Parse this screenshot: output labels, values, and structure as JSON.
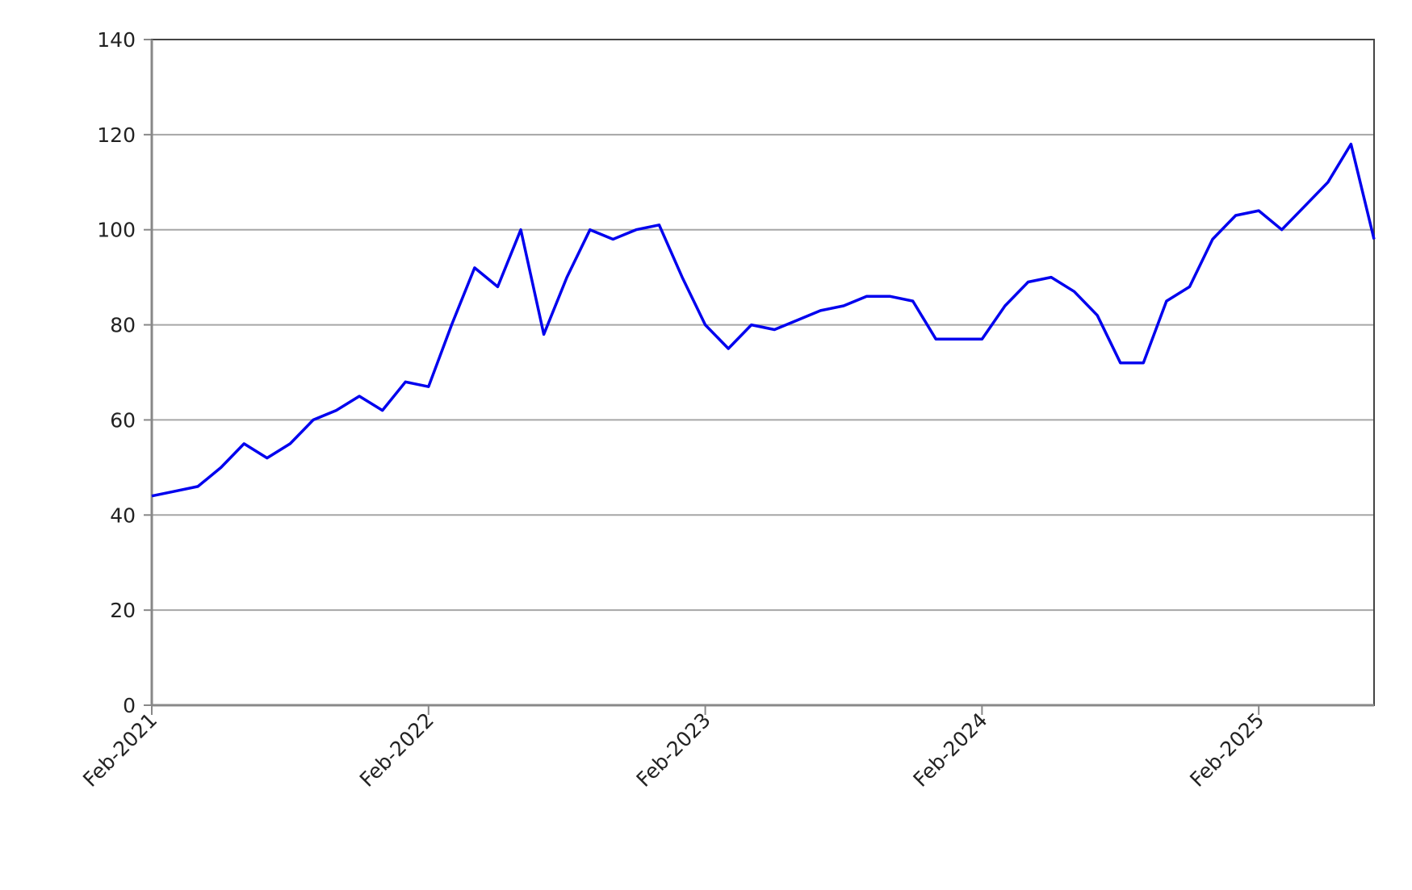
{
  "chart_data": {
    "type": "line",
    "x": [
      "Feb-2021",
      "Mar-2021",
      "Apr-2021",
      "May-2021",
      "Jun-2021",
      "Jul-2021",
      "Aug-2021",
      "Sep-2021",
      "Oct-2021",
      "Nov-2021",
      "Dec-2021",
      "Jan-2022",
      "Feb-2022",
      "Mar-2022",
      "Apr-2022",
      "May-2022",
      "Jun-2022",
      "Jul-2022",
      "Aug-2022",
      "Sep-2022",
      "Oct-2022",
      "Nov-2022",
      "Dec-2022",
      "Jan-2023",
      "Feb-2023",
      "Mar-2023",
      "Apr-2023",
      "May-2023",
      "Jun-2023",
      "Jul-2023",
      "Aug-2023",
      "Sep-2023",
      "Oct-2023",
      "Nov-2023",
      "Dec-2023",
      "Jan-2024",
      "Feb-2024",
      "Mar-2024",
      "Apr-2024",
      "May-2024",
      "Jun-2024",
      "Jul-2024",
      "Aug-2024",
      "Sep-2024",
      "Oct-2024",
      "Nov-2024",
      "Dec-2024",
      "Jan-2025",
      "Feb-2025",
      "Mar-2025",
      "Apr-2025",
      "May-2025",
      "Jun-2025",
      "Jul-2025"
    ],
    "values": [
      44,
      45,
      46,
      50,
      55,
      52,
      55,
      60,
      62,
      65,
      62,
      68,
      67,
      80,
      92,
      88,
      100,
      78,
      90,
      100,
      98,
      100,
      101,
      90,
      80,
      75,
      80,
      79,
      81,
      83,
      84,
      86,
      86,
      85,
      77,
      77,
      77,
      84,
      89,
      90,
      87,
      82,
      72,
      72,
      85,
      88,
      98,
      103,
      104,
      100,
      105,
      110,
      118,
      98
    ],
    "color": "#0000ee",
    "xlim": [
      "Feb-2021",
      "Jul-2025"
    ],
    "xticks": [
      "Feb-2021",
      "Feb-2022",
      "Feb-2023",
      "Feb-2024",
      "Feb-2025"
    ],
    "ylim": [
      0,
      140
    ],
    "yticks": [
      0,
      20,
      40,
      60,
      80,
      100,
      120,
      140
    ],
    "grid": true
  }
}
